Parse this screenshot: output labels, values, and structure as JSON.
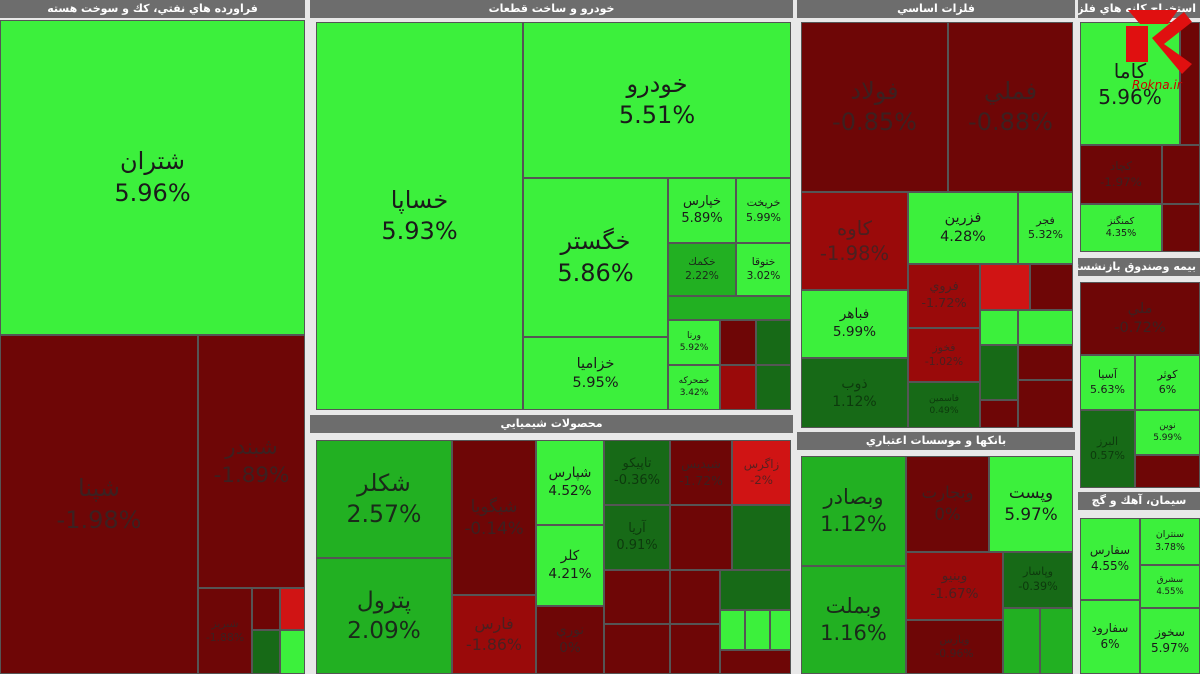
{
  "sections": [
    {
      "title": "فراورده هاي نفتي، كك و سوخت هسته",
      "tiles": [
        {
          "name": "شتران",
          "change": "5.96%"
        },
        {
          "name": "شپنا",
          "change": "-1.98%"
        },
        {
          "name": "شبندر",
          "change": "-1.89%"
        },
        {
          "name": "شبريز",
          "change": "-1.88%"
        }
      ]
    },
    {
      "title": "خودرو و ساخت قطعات",
      "tiles": [
        {
          "name": "خساپا",
          "change": "5.93%"
        },
        {
          "name": "خودرو",
          "change": "5.51%"
        },
        {
          "name": "خگستر",
          "change": "5.86%"
        },
        {
          "name": "خزاميا",
          "change": "5.95%"
        },
        {
          "name": "خپارس",
          "change": "5.89%"
        },
        {
          "name": "خريخت",
          "change": "5.99%"
        },
        {
          "name": "خكمك",
          "change": "2.22%"
        },
        {
          "name": "ختوقا",
          "change": "3.02%"
        },
        {
          "name": "ورنا",
          "change": "5.92%"
        },
        {
          "name": "خمحركه",
          "change": "3.42%"
        }
      ]
    },
    {
      "title": "محصولات شيميايي",
      "tiles": [
        {
          "name": "شكلر",
          "change": "2.57%"
        },
        {
          "name": "پترول",
          "change": "2.09%"
        },
        {
          "name": "شيگويا",
          "change": "-0.14%"
        },
        {
          "name": "فارس",
          "change": "-1.86%"
        },
        {
          "name": "شپارس",
          "change": "4.52%"
        },
        {
          "name": "كلر",
          "change": "4.21%"
        },
        {
          "name": "تاپيكو",
          "change": "-0.36%"
        },
        {
          "name": "شپديس",
          "change": "-1.72%"
        },
        {
          "name": "زاگرس",
          "change": "-2%"
        },
        {
          "name": "آريا",
          "change": "0.91%"
        },
        {
          "name": "نوري",
          "change": "0%"
        }
      ]
    },
    {
      "title": "فلزات اساسي",
      "tiles": [
        {
          "name": "فولاد",
          "change": "-0.85%"
        },
        {
          "name": "فملي",
          "change": "-0.88%"
        },
        {
          "name": "كاوه",
          "change": "-1.98%"
        },
        {
          "name": "فزرين",
          "change": "4.28%"
        },
        {
          "name": "فجر",
          "change": "5.32%"
        },
        {
          "name": "فباهر",
          "change": "5.99%"
        },
        {
          "name": "ذوب",
          "change": "1.12%"
        },
        {
          "name": "فروي",
          "change": "-1.72%"
        },
        {
          "name": "فخوز",
          "change": "-1.02%"
        },
        {
          "name": "فاسمين",
          "change": "0.49%"
        }
      ]
    },
    {
      "title": "بانكها و موسسات اعتباري",
      "tiles": [
        {
          "name": "وبصادر",
          "change": "1.12%"
        },
        {
          "name": "وبملت",
          "change": "1.16%"
        },
        {
          "name": "وتجارت",
          "change": "0%"
        },
        {
          "name": "وپست",
          "change": "5.97%"
        },
        {
          "name": "وبنيو",
          "change": "-1.67%"
        },
        {
          "name": "وپاسار",
          "change": "-0.39%"
        },
        {
          "name": "وپارس",
          "change": "-0.96%"
        }
      ]
    },
    {
      "title": "استخراج كانه هاي فلزي",
      "tiles": [
        {
          "name": "كاما",
          "change": "5.96%"
        },
        {
          "name": "كچاد",
          "change": "-1.97%"
        },
        {
          "name": "كمنگنز",
          "change": "4.35%"
        }
      ]
    },
    {
      "title": "بيمه وصندوق بازنشستگي",
      "tiles": [
        {
          "name": "ملي",
          "change": "-0.72%"
        },
        {
          "name": "آسيا",
          "change": "5.63%"
        },
        {
          "name": "كوثر",
          "change": "6%"
        },
        {
          "name": "نوين",
          "change": "5.99%"
        },
        {
          "name": "البرز",
          "change": "0.57%"
        }
      ]
    },
    {
      "title": "سيمان، آهك و گچ",
      "tiles": [
        {
          "name": "سفارس",
          "change": "4.55%"
        },
        {
          "name": "سفارود",
          "change": "6%"
        },
        {
          "name": "سنتران",
          "change": "3.78%"
        },
        {
          "name": "سشرق",
          "change": "4.55%"
        },
        {
          "name": "سخوز",
          "change": "5.97%"
        }
      ]
    }
  ],
  "watermark": "Rokna.ir"
}
